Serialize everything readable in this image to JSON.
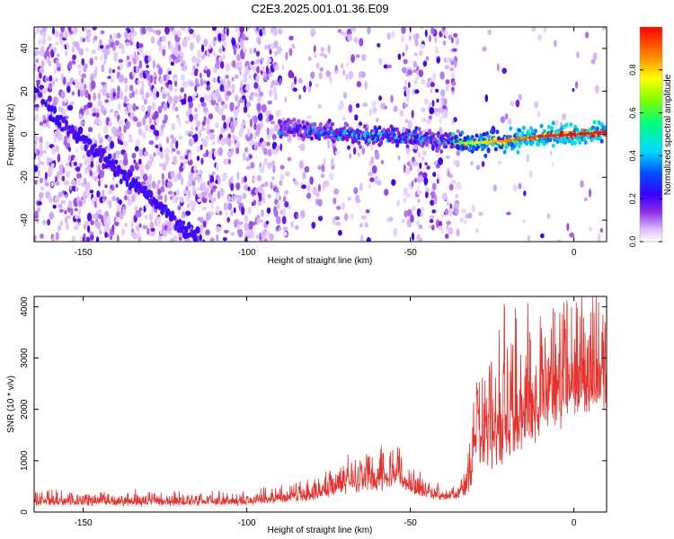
{
  "figure_title": "C2E3.2025.001.01.36.E09",
  "chart_data": [
    {
      "type": "heatmap",
      "xlabel": "Height of straight line (km)",
      "ylabel": "Frequency (Hz)",
      "xlim": [
        -165,
        10
      ],
      "ylim": [
        -50,
        50
      ],
      "xticks": [
        -150,
        -100,
        -50,
        0
      ],
      "yticks": [
        -40,
        -20,
        0,
        20,
        40
      ],
      "colorbar": {
        "label": "Normalized spectral amplitude",
        "range": [
          0,
          1
        ],
        "ticks": [
          0.0,
          0.2,
          0.4,
          0.6,
          0.8
        ],
        "tick_labels": [
          "0.0",
          "0.2",
          "0.4",
          "0.6",
          "0.8"
        ]
      },
      "main_track": {
        "x": [
          -90,
          -80,
          -70,
          -60,
          -50,
          -40,
          -35,
          -30,
          -20,
          -10,
          0,
          10
        ],
        "y": [
          3,
          2,
          0,
          -1,
          -1.5,
          -3,
          -4,
          -4,
          -3,
          -1,
          0,
          1
        ],
        "amplitude": [
          0.25,
          0.3,
          0.35,
          0.4,
          0.35,
          0.3,
          0.55,
          0.7,
          0.8,
          0.9,
          0.95,
          0.9
        ]
      },
      "descending_tracks": [
        {
          "x": [
            -165,
            -155,
            -145,
            -135,
            -125,
            -118
          ],
          "y": [
            20,
            5,
            -8,
            -22,
            -35,
            -50
          ]
        },
        {
          "x": [
            -160,
            -150,
            -140,
            -130,
            -120,
            -112
          ],
          "y": [
            8,
            -5,
            -18,
            -30,
            -42,
            -50
          ]
        },
        {
          "x": [
            -150,
            -140,
            -130,
            -122,
            -115
          ],
          "y": [
            -2,
            -14,
            -28,
            -40,
            -50
          ]
        }
      ]
    },
    {
      "type": "line",
      "xlabel": "Height of straight line (km)",
      "ylabel": "SNR (10 * v/v)",
      "xlim": [
        -165,
        10
      ],
      "ylim": [
        0,
        4200
      ],
      "xticks": [
        -150,
        -100,
        -50,
        0
      ],
      "yticks": [
        0,
        1000,
        2000,
        3000,
        4000
      ],
      "color": "#e8302c",
      "envelope": {
        "x": [
          -165,
          -120,
          -100,
          -80,
          -70,
          -60,
          -55,
          -50,
          -40,
          -35,
          -32,
          -30,
          -25,
          -20,
          -15,
          -10,
          -5,
          0,
          5,
          10
        ],
        "base": [
          150,
          150,
          160,
          260,
          420,
          500,
          600,
          380,
          240,
          280,
          450,
          900,
          1100,
          1300,
          1500,
          1700,
          1900,
          2000,
          2100,
          2200
        ],
        "amplitude": [
          180,
          170,
          170,
          260,
          420,
          520,
          520,
          360,
          160,
          200,
          700,
          1300,
          1500,
          1500,
          1700,
          1700,
          1600,
          1500,
          1500,
          1600
        ]
      }
    }
  ]
}
